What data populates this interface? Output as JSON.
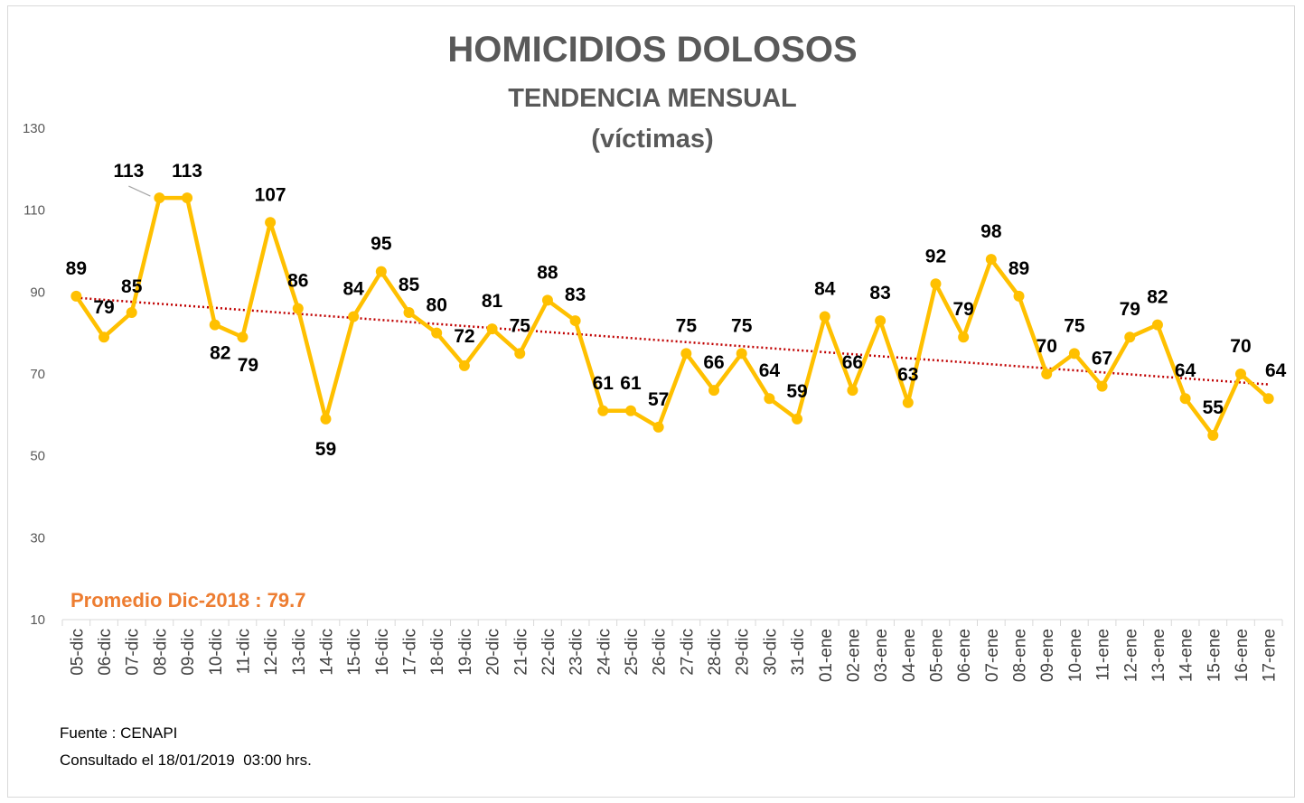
{
  "chart_data": {
    "type": "line",
    "title": "HOMICIDIOS DOLOSOS",
    "subtitle": "TENDENCIA MENSUAL",
    "subtitle2": "(víctimas)",
    "categories": [
      "05-dic",
      "06-dic",
      "07-dic",
      "08-dic",
      "09-dic",
      "10-dic",
      "11-dic",
      "12-dic",
      "13-dic",
      "14-dic",
      "15-dic",
      "16-dic",
      "17-dic",
      "18-dic",
      "19-dic",
      "20-dic",
      "21-dic",
      "22-dic",
      "23-dic",
      "24-dic",
      "25-dic",
      "26-dic",
      "27-dic",
      "28-dic",
      "29-dic",
      "30-dic",
      "31-dic",
      "01-ene",
      "02-ene",
      "03-ene",
      "04-ene",
      "05-ene",
      "06-ene",
      "07-ene",
      "08-ene",
      "09-ene",
      "10-ene",
      "11-ene",
      "12-ene",
      "13-ene",
      "14-ene",
      "15-ene",
      "16-ene",
      "17-ene"
    ],
    "series": [
      {
        "values": [
          89,
          79,
          85,
          113,
          113,
          82,
          79,
          107,
          86,
          59,
          84,
          95,
          85,
          80,
          72,
          81,
          75,
          88,
          83,
          61,
          61,
          57,
          75,
          66,
          75,
          64,
          59,
          84,
          66,
          83,
          63,
          92,
          79,
          98,
          89,
          70,
          75,
          67,
          79,
          82,
          64,
          55,
          70,
          64
        ],
        "color": "#ffc000"
      }
    ],
    "trendline": {
      "type": "linear",
      "style": "dotted",
      "color": "#c00000"
    },
    "yticks": [
      "10",
      "30",
      "50",
      "70",
      "90",
      "110",
      "130"
    ],
    "ylim": [
      10,
      130
    ],
    "xlabel": "",
    "ylabel": "",
    "grid": false,
    "legend": "none",
    "annotation": "Promedio Dic-2018 : 79.7",
    "annotation_color": "#ed7d31"
  },
  "footer": {
    "source": "Fuente : CENAPI",
    "consulted": "Consultado el 18/01/2019  03:00 hrs."
  }
}
